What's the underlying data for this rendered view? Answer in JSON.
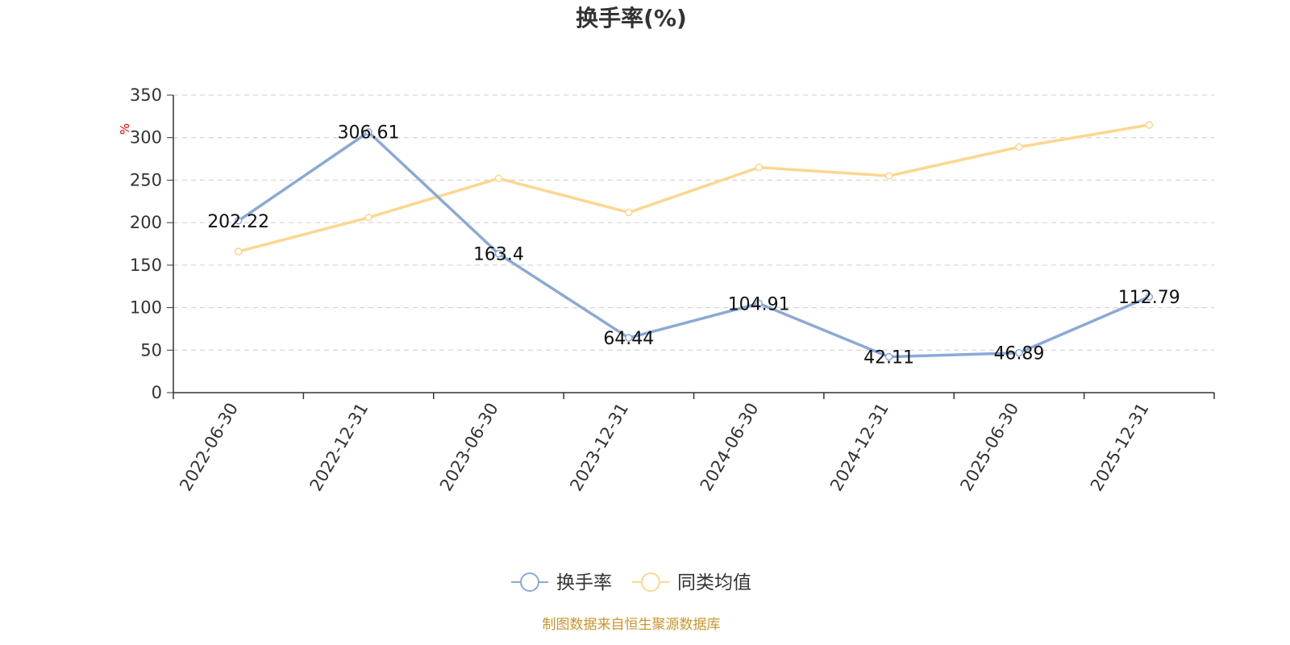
{
  "chart_data": {
    "type": "line",
    "title": "换手率(%)",
    "ylabel": "%",
    "ylim": [
      0,
      350
    ],
    "yticks": [
      "0",
      "50",
      "100",
      "150",
      "200",
      "250",
      "300",
      "350"
    ],
    "categories": [
      "2022-06-30",
      "2022-12-31",
      "2023-06-30",
      "2023-12-31",
      "2024-06-30",
      "2024-12-31",
      "2025-06-30",
      "2025-12-31"
    ],
    "series": [
      {
        "name": "换手率",
        "color": "#8aa9d6",
        "values": [
          202.22,
          306.61,
          163.4,
          64.44,
          104.91,
          42.11,
          46.89,
          112.79
        ],
        "labels": [
          "202.22",
          "306.61",
          "163.4",
          "64.44",
          "104.91",
          "42.11",
          "46.89",
          "112.79"
        ]
      },
      {
        "name": "同类均值",
        "color": "#fbd78f",
        "values": [
          166,
          206,
          252,
          212,
          265,
          255,
          289,
          315
        ]
      }
    ],
    "grid": true,
    "legend_position": "bottom-center",
    "source_note": "制图数据来自恒生聚源数据库"
  }
}
